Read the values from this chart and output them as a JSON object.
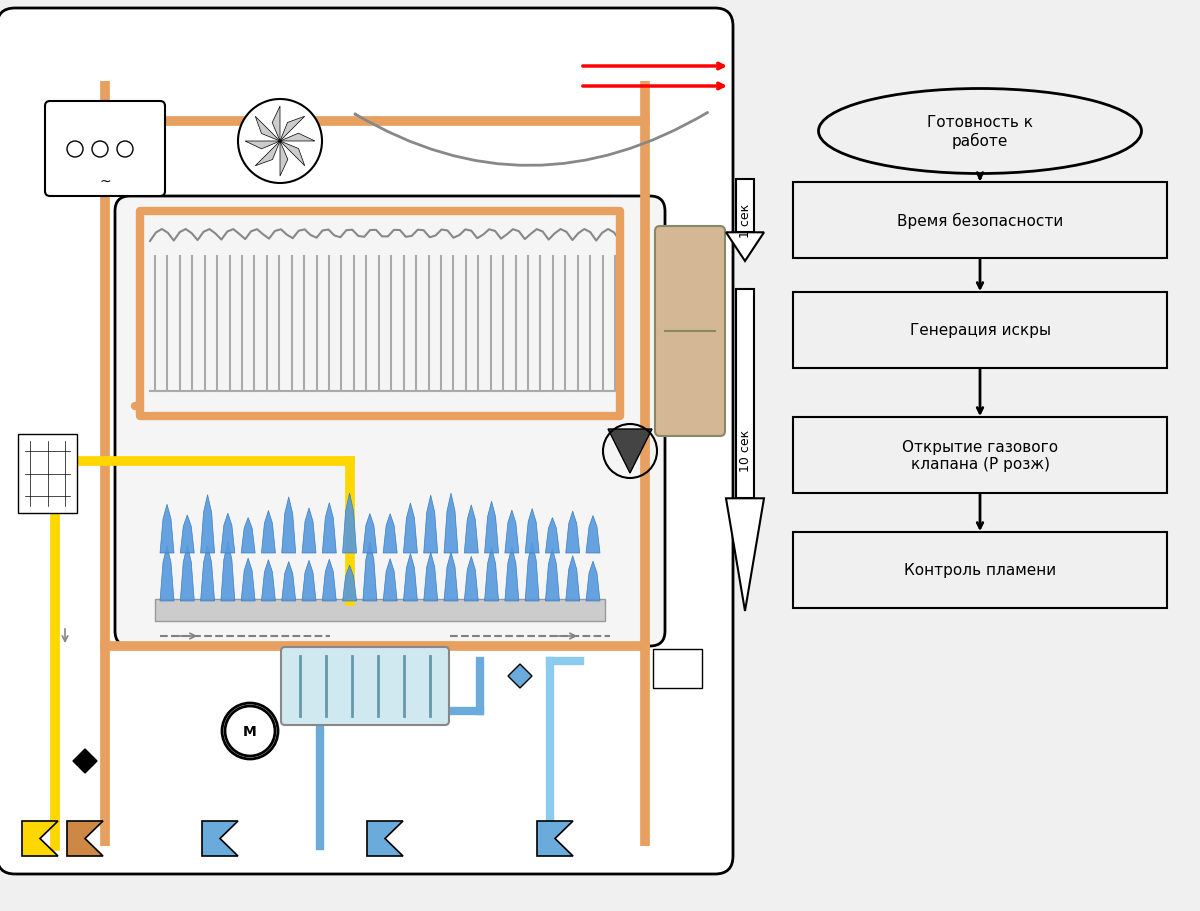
{
  "bg_color": "#f0f0f0",
  "fig_width": 12.0,
  "fig_height": 9.12,
  "flow_steps": [
    "Готовность к\nработе",
    "Время безопасности",
    "Генерация искры",
    "Открытие газового\nклапана (Р розж)",
    "Контроль пламени"
  ],
  "time_label_1sec": "1 сек",
  "time_label_10sec": "10 сек",
  "orange_color": "#E8A060",
  "blue_color": "#6AABDC",
  "yellow_color": "#FFD700",
  "gray_color": "#888888",
  "dark_gray": "#555555",
  "boiler_bg": "#e8e8e8"
}
